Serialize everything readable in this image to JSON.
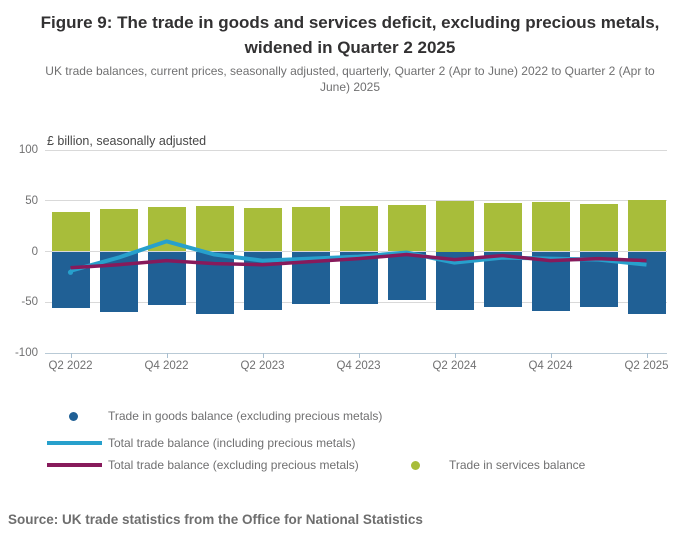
{
  "header": {
    "title_line1": "Figure 9: The trade in goods and services deficit, excluding precious metals,",
    "title_line2": "widened in Quarter 2 2025",
    "subtitle_line1": "UK trade balances, current prices, seasonally adjusted, quarterly, Quarter 2 (Apr to June) 2022 to Quarter 2 (Apr to",
    "subtitle_line2": "June) 2025"
  },
  "chart_data": {
    "type": "bar",
    "unit_label": "£ billion, seasonally adjusted",
    "categories": [
      "Q2 2022",
      "Q3 2022",
      "Q4 2022",
      "Q1 2023",
      "Q2 2023",
      "Q3 2023",
      "Q4 2023",
      "Q1 2024",
      "Q2 2024",
      "Q3 2024",
      "Q4 2024",
      "Q1 2025",
      "Q2 2025"
    ],
    "series": [
      {
        "name": "Trade in goods balance (excluding precious metals)",
        "type": "bar",
        "color": "#206095",
        "values": [
          -56,
          -60,
          -53,
          -62,
          -58,
          -52,
          -52,
          -48,
          -58,
          -55,
          -59,
          -55,
          -62
        ]
      },
      {
        "name": "Trade in services balance",
        "type": "bar",
        "color": "#a8bd3a",
        "values": [
          39,
          42,
          44,
          45,
          43,
          44,
          45,
          46,
          50,
          48,
          49,
          47,
          51
        ]
      },
      {
        "name": "Total trade balance (including precious metals)",
        "type": "line",
        "color": "#27a0cc",
        "values": [
          -19,
          -6,
          10,
          -3,
          -9,
          -7,
          -5,
          -1,
          -11,
          -6,
          -7,
          -8,
          -13
        ]
      },
      {
        "name": "Total trade balance (excluding precious metals)",
        "type": "line",
        "color": "#871a5b",
        "values": [
          -16,
          -13,
          -9,
          -12,
          -13,
          -10,
          -7,
          -3,
          -8,
          -4,
          -9,
          -7,
          -9
        ]
      }
    ],
    "ylim": [
      -100,
      100
    ],
    "yticks": [
      100,
      50,
      0,
      -50,
      -100
    ],
    "x_ticks": [
      {
        "index": 0,
        "label": "Q2 2022"
      },
      {
        "index": 2,
        "label": "Q4 2022"
      },
      {
        "index": 4,
        "label": "Q2 2023"
      },
      {
        "index": 6,
        "label": "Q4 2023"
      },
      {
        "index": 8,
        "label": "Q2 2024"
      },
      {
        "index": 10,
        "label": "Q4 2024"
      },
      {
        "index": 12,
        "label": "Q2 2025"
      }
    ],
    "grid": "horizontal",
    "legend_position": "bottom"
  },
  "legend": {
    "items": [
      {
        "label": "Trade in goods balance (excluding precious metals)",
        "marker": "dot",
        "color": "#206095"
      },
      {
        "label": "Total trade balance (including precious metals)",
        "marker": "line",
        "color": "#27a0cc"
      },
      {
        "label": "Total trade balance (excluding precious metals)",
        "marker": "line",
        "color": "#871a5b"
      },
      {
        "label": "Trade in services balance",
        "marker": "dot",
        "color": "#a8bd3a"
      }
    ]
  },
  "source": "Source: UK trade statistics from the Office for National Statistics",
  "colors": {
    "goods_bar": "#206095",
    "services_bar": "#a8bd3a",
    "total_incl_line": "#27a0cc",
    "total_excl_line": "#871a5b",
    "gridline": "#d9d9d9",
    "axis_line": "#b9cad6",
    "text_gray": "#707071",
    "title_text": "#323132"
  }
}
